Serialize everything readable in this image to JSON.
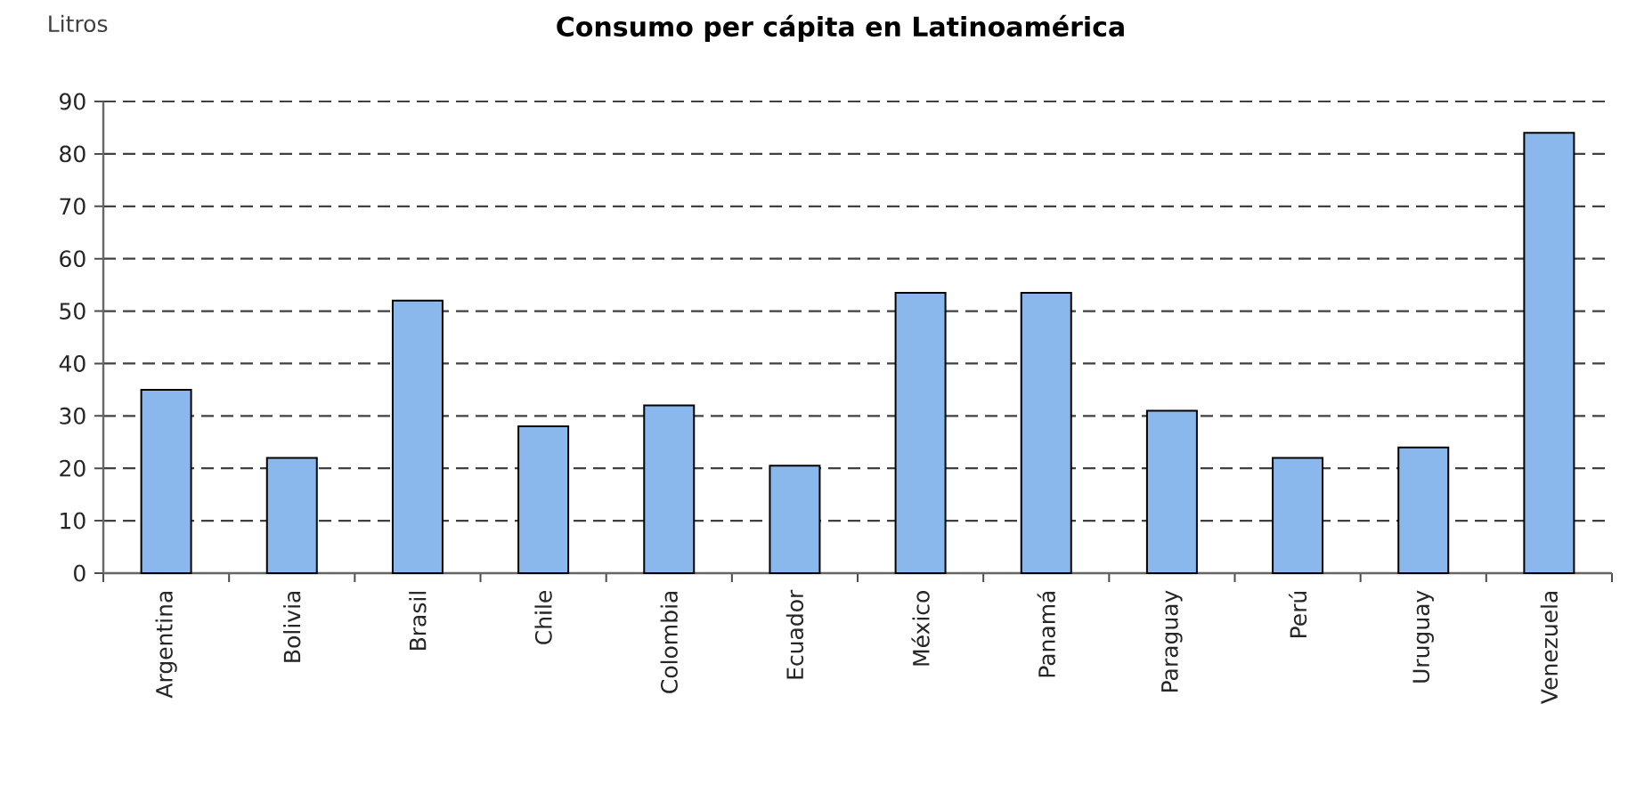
{
  "chart_data": {
    "type": "bar",
    "title": "Consumo per cápita en Latinoamérica",
    "ylabel": "Litros",
    "categories": [
      "Argentina",
      "Bolivia",
      "Brasil",
      "Chile",
      "Colombia",
      "Ecuador",
      "México",
      "Panamá",
      "Paraguay",
      "Perú",
      "Uruguay",
      "Venezuela"
    ],
    "values": [
      35,
      22,
      52,
      28,
      32,
      20.5,
      53.5,
      53.5,
      31,
      22,
      24,
      84
    ],
    "color": "#8ab8ec",
    "ylim": [
      0,
      90
    ],
    "yticks": [
      0,
      10,
      20,
      30,
      40,
      50,
      60,
      70,
      80,
      90
    ],
    "grid": "y"
  }
}
